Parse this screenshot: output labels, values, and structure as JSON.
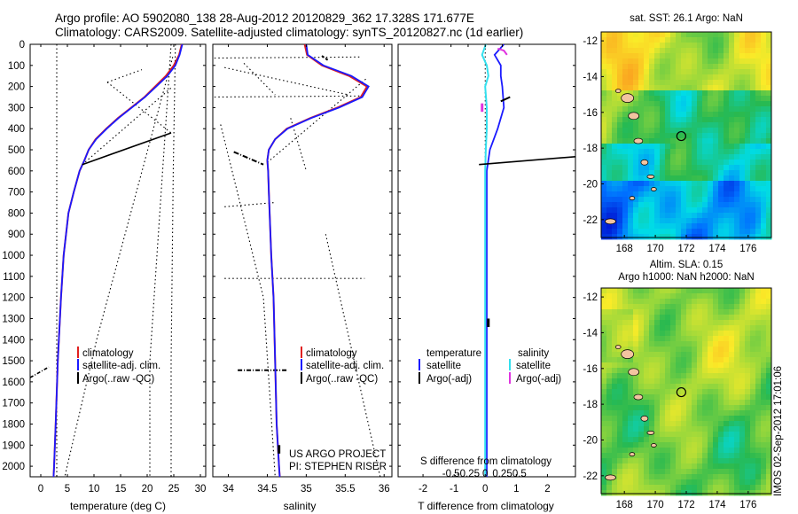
{
  "title": {
    "line1": "Argo profile: AO 5902080_138 28-Aug-2012 20120829_362 17.328S 171.677E",
    "line2": "Climatology: CARS2009. Satellite-adjusted climatology: synTS_20120827.nc (1d earlier)"
  },
  "stamp": "IMOS 02-Sep-2012 17:01:06",
  "credit": {
    "line1": "US ARGO PROJECT",
    "line2": "PI: STEPHEN RISER"
  },
  "map_top_title": "sat. SST: 26.1  Argo: NaN",
  "map_bottom_title_1": "Altim. SLA: 0.15",
  "map_bottom_title_2": "Argo h1000: NaN h2000: NaN",
  "colors": {
    "climatology": "#e02020",
    "satellite": "#1a1aff",
    "argo": "#000000",
    "salinity_sat": "#33e0ee",
    "salinity_argo": "#e033e0"
  },
  "chart_data": [
    {
      "type": "line",
      "name": "temperature profile",
      "xlabel": "temperature (deg C)",
      "ylabel": "",
      "xlim": [
        -2,
        31
      ],
      "ylim": [
        2050,
        0
      ],
      "xticks": [
        0,
        5,
        10,
        15,
        20,
        25,
        30
      ],
      "yticks": [
        0,
        100,
        200,
        300,
        400,
        500,
        600,
        700,
        800,
        900,
        1000,
        1100,
        1200,
        1300,
        1400,
        1500,
        1600,
        1700,
        1800,
        1900,
        2000
      ],
      "legend": [
        "climatology",
        "satellite-adj. clim.",
        "Argo(..raw -QC)"
      ],
      "series": [
        {
          "name": "climatology",
          "color": "#e02020",
          "depth": [
            0,
            50,
            100,
            150,
            200,
            250,
            300,
            350,
            400,
            450,
            500,
            550,
            600,
            700,
            800,
            1000,
            1200,
            1500,
            1800,
            2000,
            2050
          ],
          "values": [
            26.5,
            26,
            25,
            23.5,
            21.5,
            19.5,
            17,
            14.5,
            12.3,
            10.3,
            9.0,
            8.2,
            7.3,
            6.2,
            5.2,
            4.3,
            3.8,
            3.2,
            2.8,
            2.5,
            2.4
          ]
        },
        {
          "name": "satellite-adj. clim.",
          "color": "#1a1aff",
          "depth": [
            0,
            50,
            100,
            150,
            200,
            250,
            300,
            350,
            400,
            450,
            500,
            550,
            600,
            700,
            800,
            1000,
            1200,
            1500,
            1800,
            2000,
            2050
          ],
          "values": [
            26.6,
            26.1,
            25.3,
            23.8,
            21.7,
            19.6,
            17.1,
            14.6,
            12.4,
            10.4,
            9.0,
            8.2,
            7.3,
            6.2,
            5.2,
            4.3,
            3.8,
            3.2,
            2.8,
            2.5,
            2.4
          ]
        },
        {
          "name": "Argo(..raw -QC)",
          "color": "#000000",
          "depth": [
            420,
            570
          ],
          "values": [
            24.5,
            7.8
          ]
        }
      ]
    },
    {
      "type": "line",
      "name": "salinity profile",
      "xlabel": "salinity",
      "ylabel": "",
      "xlim": [
        33.8,
        36.1
      ],
      "ylim": [
        2050,
        0
      ],
      "xticks": [
        34,
        34.5,
        35,
        35.5,
        36
      ],
      "legend": [
        "climatology",
        "satellite-adj. clim.",
        "Argo(..raw -QC)"
      ],
      "series": [
        {
          "name": "climatology",
          "color": "#e02020",
          "depth": [
            0,
            50,
            100,
            150,
            200,
            250,
            300,
            350,
            400,
            450,
            500,
            550,
            600,
            700,
            800,
            1000,
            1200,
            1500,
            1800,
            2000,
            2050
          ],
          "values": [
            34.98,
            35.01,
            35.2,
            35.55,
            35.78,
            35.7,
            35.4,
            35.05,
            34.75,
            34.6,
            34.52,
            34.5,
            34.51,
            34.52,
            34.53,
            34.55,
            34.58,
            34.6,
            34.62,
            34.65,
            34.66
          ]
        },
        {
          "name": "satellite-adj. clim.",
          "color": "#1a1aff",
          "depth": [
            0,
            50,
            100,
            150,
            200,
            250,
            300,
            350,
            400,
            450,
            500,
            550,
            600,
            700,
            800,
            1000,
            1200,
            1500,
            1800,
            2000,
            2050
          ],
          "values": [
            35.0,
            35.02,
            35.22,
            35.58,
            35.8,
            35.72,
            35.42,
            35.06,
            34.76,
            34.6,
            34.52,
            34.5,
            34.51,
            34.52,
            34.53,
            34.55,
            34.58,
            34.6,
            34.62,
            34.65,
            34.66
          ]
        },
        {
          "name": "Argo(..raw -QC)",
          "color": "#000000",
          "depth": [
            510,
            570
          ],
          "values": [
            34.07,
            34.45
          ]
        }
      ]
    },
    {
      "type": "line",
      "name": "difference from climatology",
      "xlabel": "T difference from climatology",
      "xlabel_top": "S difference from climatology",
      "ylabel": "",
      "xlim": [
        -2.8,
        2.9
      ],
      "ylim": [
        2050,
        0
      ],
      "xticks_T": [
        -2,
        -1,
        0,
        1,
        2
      ],
      "xticks_S": [
        -0.5,
        -0.25,
        0,
        0.25,
        0.5
      ],
      "legend_temperature": [
        "temperature",
        "satellite",
        "Argo(-adj)"
      ],
      "legend_salinity": [
        "salinity",
        "satellite",
        "Argo(-adj)"
      ],
      "series": [
        {
          "name": "temperature satellite",
          "color": "#1a1aff",
          "depth": [
            0,
            50,
            100,
            150,
            200,
            300,
            400,
            500,
            600,
            800,
            1000,
            1500,
            2000,
            2050
          ],
          "values": [
            0.6,
            0.3,
            0.5,
            0.5,
            0.55,
            0.6,
            0.4,
            0.15,
            0.05,
            0.05,
            0.05,
            0.05,
            0.05,
            0.05
          ]
        },
        {
          "name": "salinity satellite",
          "color": "#33e0ee",
          "depth": [
            0,
            50,
            100,
            150,
            200,
            300,
            400,
            500,
            600,
            800,
            1000,
            1500,
            2000,
            2050
          ],
          "values": [
            0.02,
            -0.1,
            0.05,
            0.1,
            0.0,
            0.05,
            0.05,
            0.02,
            0.0,
            0.0,
            0.0,
            0.0,
            0.0,
            0.0
          ]
        },
        {
          "name": "Argo(-adj) temperature",
          "color": "#000000",
          "depth": [
            570,
            530
          ],
          "values": [
            -0.2,
            3.1
          ]
        }
      ]
    },
    {
      "type": "heatmap",
      "name": "SST map",
      "title": "sat. SST: 26.1  Argo: NaN",
      "xticks": [
        168,
        170,
        172,
        174,
        176
      ],
      "yticks": [
        -12,
        -14,
        -16,
        -18,
        -20,
        -22
      ],
      "xlim": [
        166.5,
        177.5
      ],
      "ylim": [
        -23,
        -11.5
      ],
      "marker": {
        "lon": 171.677,
        "lat": -17.328
      }
    },
    {
      "type": "heatmap",
      "name": "SLA map",
      "title": "Altim. SLA: 0.15 / Argo h1000: NaN h2000: NaN",
      "xticks": [
        168,
        170,
        172,
        174,
        176
      ],
      "yticks": [
        -12,
        -14,
        -16,
        -18,
        -20,
        -22
      ],
      "xlim": [
        166.5,
        177.5
      ],
      "ylim": [
        -23,
        -11.5
      ],
      "marker": {
        "lon": 171.677,
        "lat": -17.328
      }
    }
  ]
}
